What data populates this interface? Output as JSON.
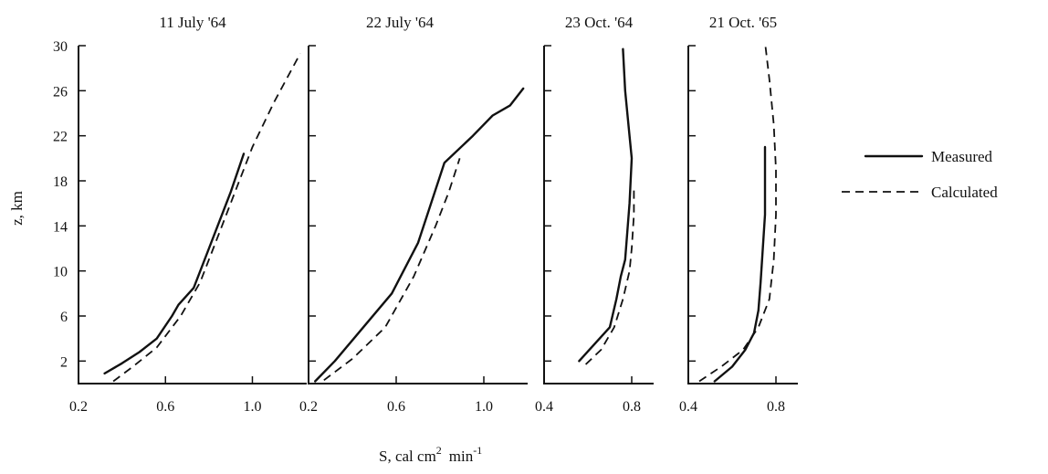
{
  "ylabel": "z, km",
  "xlabel_main": "S,  cal cm",
  "xlabel_sup1": "2",
  "xlabel_mid": "min",
  "xlabel_sup2": "-1",
  "legend": [
    {
      "label": "Measured",
      "style": "solid"
    },
    {
      "label": "Calculated",
      "style": "dashed"
    }
  ],
  "chart_data": [
    {
      "type": "line",
      "title": "11 July '64",
      "xlim": [
        0.2,
        1.25
      ],
      "ylim": [
        0,
        30
      ],
      "xticks": [
        0.2,
        0.6,
        1.0
      ],
      "xtick_labels": [
        "0.2",
        "0.6",
        "1.0"
      ],
      "yticks": [
        2,
        6,
        10,
        14,
        18,
        22,
        26,
        30
      ],
      "ytick_labels": [
        "2",
        "6",
        "10",
        "14",
        "18",
        "22",
        "26",
        "30"
      ],
      "series": [
        {
          "name": "Measured",
          "style": "solid",
          "points": [
            [
              0.32,
              0.9
            ],
            [
              0.4,
              1.8
            ],
            [
              0.48,
              2.8
            ],
            [
              0.56,
              4.0
            ],
            [
              0.63,
              6.0
            ],
            [
              0.66,
              7.0
            ],
            [
              0.73,
              8.5
            ],
            [
              0.8,
              12.0
            ],
            [
              0.9,
              17.0
            ],
            [
              0.96,
              20.4
            ]
          ]
        },
        {
          "name": "Calculated",
          "style": "dashed",
          "points": [
            [
              0.36,
              0.2
            ],
            [
              0.45,
              1.5
            ],
            [
              0.56,
              3.2
            ],
            [
              0.67,
              6.0
            ],
            [
              0.76,
              9.0
            ],
            [
              0.84,
              13.0
            ],
            [
              0.92,
              17.0
            ],
            [
              1.0,
              21.0
            ],
            [
              1.1,
              25.0
            ],
            [
              1.22,
              29.3
            ]
          ]
        }
      ]
    },
    {
      "type": "line",
      "title": "22 July '64",
      "xlim": [
        0.2,
        1.2
      ],
      "ylim": [
        0,
        30
      ],
      "xticks": [
        0.2,
        0.6,
        1.0
      ],
      "xtick_labels": [
        "0.2",
        "0.6",
        "1.0"
      ],
      "yticks": [
        2,
        6,
        10,
        14,
        18,
        22,
        26,
        30
      ],
      "ytick_labels": [],
      "series": [
        {
          "name": "Measured",
          "style": "solid",
          "points": [
            [
              0.23,
              0.2
            ],
            [
              0.32,
              2.0
            ],
            [
              0.45,
              5.0
            ],
            [
              0.58,
              8.0
            ],
            [
              0.7,
              12.5
            ],
            [
              0.82,
              19.6
            ],
            [
              0.95,
              22.0
            ],
            [
              1.04,
              23.8
            ],
            [
              1.12,
              24.7
            ],
            [
              1.18,
              26.2
            ]
          ]
        },
        {
          "name": "Calculated",
          "style": "dashed",
          "points": [
            [
              0.27,
              0.3
            ],
            [
              0.4,
              2.2
            ],
            [
              0.55,
              5.0
            ],
            [
              0.68,
              9.5
            ],
            [
              0.78,
              14.0
            ],
            [
              0.84,
              17.0
            ],
            [
              0.89,
              20.0
            ]
          ]
        }
      ]
    },
    {
      "type": "line",
      "title": "23 Oct. '64",
      "xlim": [
        0.4,
        0.9
      ],
      "ylim": [
        0,
        30
      ],
      "xticks": [
        0.4,
        0.8
      ],
      "xtick_labels": [
        "0.4",
        "0.8"
      ],
      "yticks": [
        2,
        6,
        10,
        14,
        18,
        22,
        26,
        30
      ],
      "ytick_labels": [],
      "series": [
        {
          "name": "Measured",
          "style": "solid",
          "points": [
            [
              0.56,
              2.0
            ],
            [
              0.63,
              3.5
            ],
            [
              0.7,
              5.0
            ],
            [
              0.73,
              7.5
            ],
            [
              0.75,
              9.5
            ],
            [
              0.77,
              11.0
            ],
            [
              0.79,
              16.0
            ],
            [
              0.8,
              20.0
            ],
            [
              0.79,
              22.0
            ],
            [
              0.77,
              26.0
            ],
            [
              0.76,
              29.7
            ]
          ]
        },
        {
          "name": "Calculated",
          "style": "dashed",
          "points": [
            [
              0.59,
              1.7
            ],
            [
              0.66,
              3.0
            ],
            [
              0.72,
              5.0
            ],
            [
              0.76,
              7.5
            ],
            [
              0.79,
              10.0
            ],
            [
              0.8,
              12.0
            ],
            [
              0.81,
              15.0
            ],
            [
              0.81,
              17.5
            ]
          ]
        }
      ]
    },
    {
      "type": "line",
      "title": "21 Oct. '65",
      "xlim": [
        0.4,
        0.9
      ],
      "ylim": [
        0,
        30
      ],
      "xticks": [
        0.4,
        0.8
      ],
      "xtick_labels": [
        "0.4",
        "0.8"
      ],
      "yticks": [
        2,
        6,
        10,
        14,
        18,
        22,
        26,
        30
      ],
      "ytick_labels": [],
      "series": [
        {
          "name": "Measured",
          "style": "solid",
          "points": [
            [
              0.52,
              0.2
            ],
            [
              0.6,
              1.5
            ],
            [
              0.66,
              3.0
            ],
            [
              0.7,
              4.5
            ],
            [
              0.72,
              6.5
            ],
            [
              0.73,
              9.0
            ],
            [
              0.74,
              12.0
            ],
            [
              0.75,
              15.0
            ],
            [
              0.75,
              21.0
            ]
          ]
        },
        {
          "name": "Calculated",
          "style": "dashed",
          "points": [
            [
              0.45,
              0.2
            ],
            [
              0.55,
              1.5
            ],
            [
              0.65,
              3.0
            ],
            [
              0.72,
              5.0
            ],
            [
              0.77,
              7.5
            ],
            [
              0.79,
              11.0
            ],
            [
              0.8,
              15.0
            ],
            [
              0.8,
              19.0
            ],
            [
              0.79,
              23.0
            ],
            [
              0.77,
              27.0
            ],
            [
              0.75,
              30.3
            ]
          ]
        }
      ]
    }
  ]
}
